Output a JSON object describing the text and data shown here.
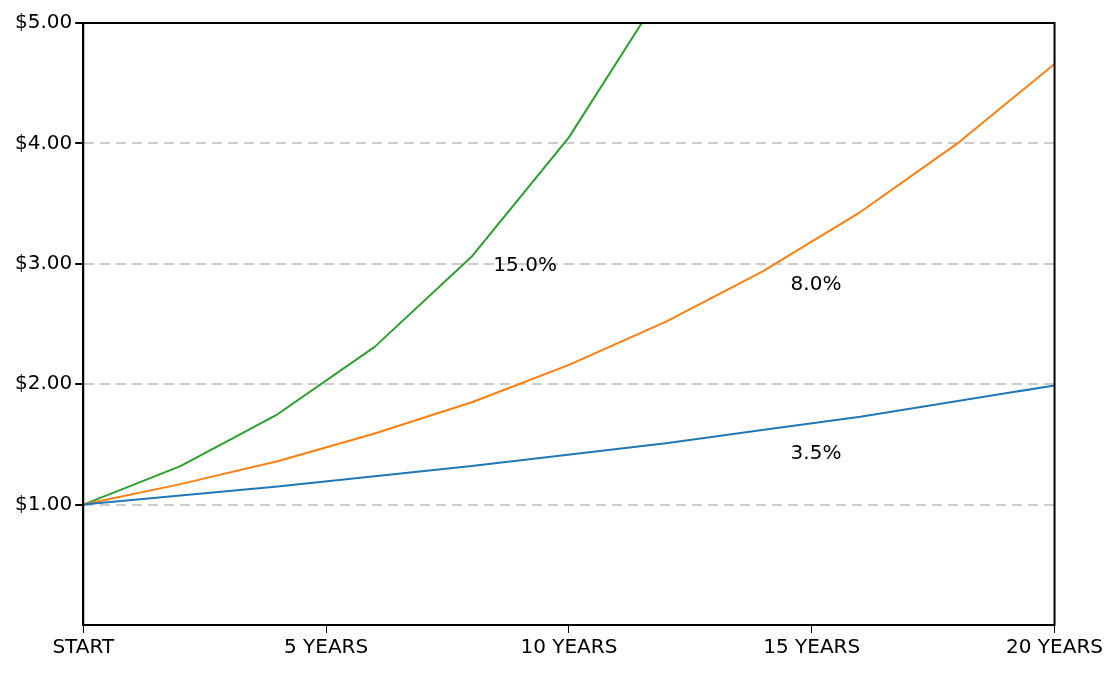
{
  "chart_data": {
    "type": "line",
    "xlim": [
      0,
      20
    ],
    "xticks": [
      {
        "value": 0,
        "label": "START"
      },
      {
        "value": 5,
        "label": "5 YEARS"
      },
      {
        "value": 10,
        "label": "10 YEARS"
      },
      {
        "value": 15,
        "label": "15 YEARS"
      },
      {
        "value": 20,
        "label": "20 YEARS"
      }
    ],
    "ylim": [
      0,
      5
    ],
    "yticks": [
      {
        "value": 1,
        "label": "$1.00"
      },
      {
        "value": 2,
        "label": "$2.00"
      },
      {
        "value": 3,
        "label": "$3.00"
      },
      {
        "value": 4,
        "label": "$4.00"
      },
      {
        "value": 5,
        "label": "$5.00"
      }
    ],
    "grid": "y",
    "legend": false,
    "marker": "none",
    "line_style": "solid",
    "series": [
      {
        "name": "3.5%",
        "color": "#1f77b4",
        "x": [
          0,
          4,
          8,
          12,
          16,
          20
        ],
        "values": [
          1,
          1.15,
          1.32,
          1.51,
          1.73,
          1.99
        ]
      },
      {
        "name": "8.0%",
        "color": "#ff7f0e",
        "x": [
          0,
          2,
          4,
          6,
          8,
          10,
          12,
          14,
          16,
          18,
          20
        ],
        "values": [
          1,
          1.17,
          1.36,
          1.59,
          1.85,
          2.16,
          2.52,
          2.94,
          3.43,
          4.0,
          4.66
        ]
      },
      {
        "name": "15.0%",
        "color": "#2ca02c",
        "x": [
          0,
          2,
          4,
          6,
          8,
          10,
          11.5
        ],
        "values": [
          1,
          1.32,
          1.75,
          2.31,
          3.06,
          4.05,
          5.0
        ]
      }
    ]
  }
}
